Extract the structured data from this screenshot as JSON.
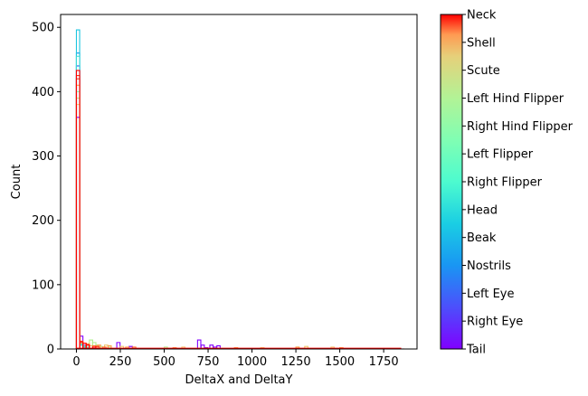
{
  "chart_data": {
    "type": "histogram",
    "xlabel": "DeltaX and DeltaY",
    "ylabel": "Count",
    "xlim": [
      -90,
      1940
    ],
    "ylim": [
      0,
      520
    ],
    "xticks": [
      0,
      250,
      500,
      750,
      1000,
      1250,
      1500,
      1750
    ],
    "yticks": [
      0,
      100,
      200,
      300,
      400,
      500
    ],
    "grid": false,
    "bin_width": 18.5,
    "colormap": "rainbow",
    "colorbar": {
      "labels": [
        "Tail",
        "Right Eye",
        "Left Eye",
        "Nostrils",
        "Beak",
        "Head",
        "Right Flipper",
        "Left Flipper",
        "Right Hind Flipper",
        "Left Hind Flipper",
        "Scute",
        "Shell",
        "Neck"
      ]
    },
    "series": [
      {
        "name": "Tail",
        "color": "#8000ff",
        "bins": [
          [
            0,
            360
          ],
          [
            18.5,
            20
          ],
          [
            37,
            6
          ],
          [
            55.5,
            3
          ],
          [
            230,
            10
          ],
          [
            300,
            4
          ],
          [
            690,
            14
          ],
          [
            710,
            6
          ],
          [
            730,
            2
          ],
          [
            760,
            6
          ],
          [
            780,
            3
          ],
          [
            800,
            5
          ]
        ]
      },
      {
        "name": "Right Eye",
        "color": "#5a30fb",
        "bins": [
          [
            0,
            420
          ],
          [
            18.5,
            10
          ],
          [
            37,
            5
          ],
          [
            55.5,
            2
          ]
        ]
      },
      {
        "name": "Left Eye",
        "color": "#3360f2",
        "bins": [
          [
            0,
            440
          ],
          [
            18.5,
            8
          ],
          [
            37,
            4
          ],
          [
            55.5,
            2
          ]
        ]
      },
      {
        "name": "Nostrils",
        "color": "#0d90e6",
        "bins": [
          [
            0,
            460
          ],
          [
            18.5,
            6
          ],
          [
            37,
            3
          ]
        ]
      },
      {
        "name": "Beak",
        "color": "#1cc6e0",
        "bins": [
          [
            0,
            496
          ],
          [
            18.5,
            9
          ],
          [
            37,
            4
          ],
          [
            55.5,
            2
          ]
        ]
      },
      {
        "name": "Head",
        "color": "#3cdad6",
        "bins": [
          [
            0,
            455
          ],
          [
            18.5,
            7
          ],
          [
            37,
            3
          ]
        ]
      },
      {
        "name": "Right Flipper",
        "color": "#80ffb4",
        "bins": [
          [
            0,
            400
          ],
          [
            18.5,
            8
          ],
          [
            37,
            5
          ],
          [
            55.5,
            3
          ]
        ]
      },
      {
        "name": "Left Flipper",
        "color": "#b0f090",
        "bins": [
          [
            0,
            390
          ],
          [
            18.5,
            9
          ],
          [
            74,
            14
          ],
          [
            92.5,
            10
          ],
          [
            111,
            6
          ],
          [
            130,
            4
          ],
          [
            180,
            3
          ],
          [
            500,
            3
          ],
          [
            1050,
            2
          ],
          [
            1250,
            3
          ]
        ]
      },
      {
        "name": "Right Hind Flipper",
        "color": "#f0c870",
        "bins": [
          [
            0,
            380
          ],
          [
            18.5,
            10
          ],
          [
            74,
            5
          ],
          [
            160,
            6
          ],
          [
            250,
            4
          ],
          [
            600,
            3
          ],
          [
            1050,
            2
          ],
          [
            1300,
            4
          ],
          [
            1450,
            3
          ]
        ]
      },
      {
        "name": "Left Hind Flipper",
        "color": "#ffa050",
        "bins": [
          [
            0,
            410
          ],
          [
            18.5,
            12
          ],
          [
            55.5,
            8
          ],
          [
            120,
            6
          ],
          [
            180,
            5
          ],
          [
            280,
            3
          ],
          [
            550,
            2
          ],
          [
            900,
            2
          ],
          [
            1250,
            3
          ],
          [
            1500,
            2
          ]
        ]
      },
      {
        "name": "Scute",
        "color": "#ff7030",
        "bins": [
          [
            0,
            420
          ],
          [
            18.5,
            10
          ],
          [
            55.5,
            7
          ],
          [
            92.5,
            5
          ],
          [
            150,
            3
          ],
          [
            320,
            3
          ]
        ]
      },
      {
        "name": "Shell",
        "color": "#ff3010",
        "bins": [
          [
            0,
            425
          ],
          [
            18.5,
            12
          ],
          [
            55.5,
            6
          ],
          [
            110,
            4
          ]
        ]
      },
      {
        "name": "Neck",
        "color": "#ff0000",
        "bins": [
          [
            0,
            433
          ],
          [
            18.5,
            10
          ],
          [
            37,
            9
          ],
          [
            55.5,
            6
          ],
          [
            92.5,
            3
          ],
          [
            1850,
            0
          ]
        ]
      }
    ]
  }
}
